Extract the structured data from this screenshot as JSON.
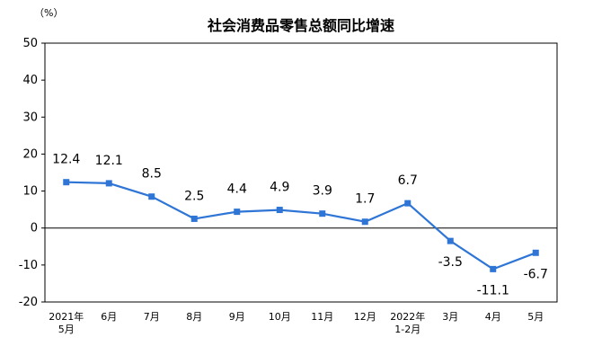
{
  "chart_data": {
    "type": "line",
    "title": "社会消费品零售总额同比增速",
    "unit_label": "（%）",
    "xlabel": "",
    "ylabel": "",
    "ylim": [
      -20,
      50
    ],
    "yticks": [
      50,
      40,
      30,
      20,
      10,
      0,
      -10,
      -20
    ],
    "grid": false,
    "line_color": "#2e75d6",
    "categories": [
      [
        "2021年",
        "5月"
      ],
      [
        "6月"
      ],
      [
        "7月"
      ],
      [
        "8月"
      ],
      [
        "9月"
      ],
      [
        "10月"
      ],
      [
        "11月"
      ],
      [
        "12月"
      ],
      [
        "2022年",
        "1-2月"
      ],
      [
        "3月"
      ],
      [
        "4月"
      ],
      [
        "5月"
      ]
    ],
    "values": [
      12.4,
      12.1,
      8.5,
      2.5,
      4.4,
      4.9,
      3.9,
      1.7,
      6.7,
      -3.5,
      -11.1,
      -6.7
    ],
    "data_labels": [
      "12.4",
      "12.1",
      "8.5",
      "2.5",
      "4.4",
      "4.9",
      "3.9",
      "1.7",
      "6.7",
      "-3.5",
      "-11.1",
      "-6.7"
    ]
  }
}
